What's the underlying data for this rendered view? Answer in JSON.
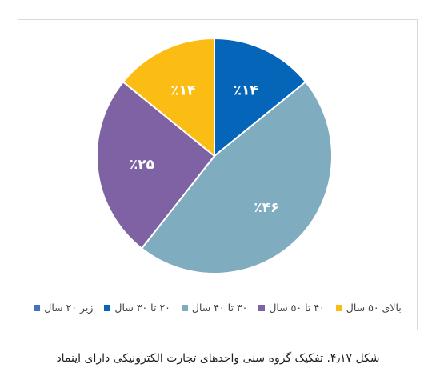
{
  "chart_data": {
    "type": "pie",
    "categories": [
      "زیر ۲۰ سال",
      "۲۰ تا ۳۰ سال",
      "۳۰ تا ۴۰ سال",
      "۴۰ تا ۵۰ سال",
      "بالای ۵۰ سال"
    ],
    "values": [
      0,
      14,
      46,
      25,
      14
    ],
    "labels": [
      "",
      "٪۱۴",
      "٪۴۶",
      "٪۲۵",
      "٪۱۴"
    ],
    "colors": [
      "#4472c4",
      "#0565b8",
      "#7fadbf",
      "#7f62a3",
      "#fbbd14"
    ],
    "legend_position": "bottom",
    "title": ""
  },
  "caption": "شکل ۴٫۱۷. تفکیک گروه سنی واحدهای تجارت الکترونیکی دارای اینماد"
}
